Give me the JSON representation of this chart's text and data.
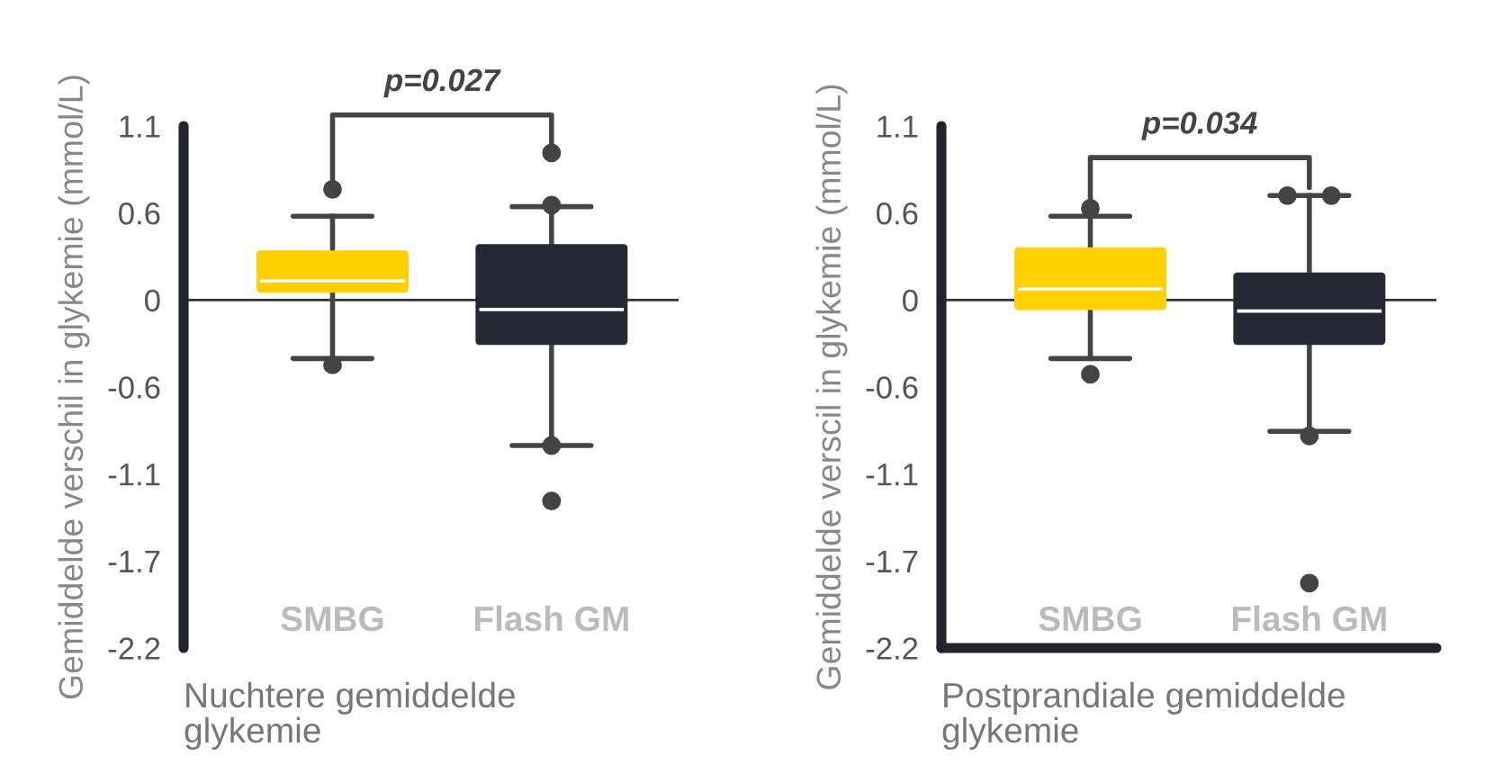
{
  "chart_data": [
    {
      "type": "box",
      "categories": [
        "SMBG",
        "Flash GM"
      ],
      "colors": [
        "#ffd100",
        "#252933"
      ],
      "boxes": [
        {
          "low": -0.37,
          "q1": 0.07,
          "median": 0.12,
          "q3": 0.29,
          "high": 0.53,
          "outliers": [
            0.7,
            -0.41
          ]
        },
        {
          "low": -0.92,
          "q1": -0.26,
          "median": -0.06,
          "q3": 0.33,
          "high": 0.59,
          "outliers": [
            0.93,
            0.6,
            -0.92,
            -1.27
          ]
        }
      ],
      "ylim": [
        -2.2,
        1.1
      ],
      "yticks": [
        -2.2,
        {
          "value": -1.65,
          "label": "-1.7"
        },
        -1.1,
        {
          "value": -0.55,
          "label": "-0.6"
        },
        0,
        {
          "value": 0.55,
          "label": "0.6"
        },
        1.1
      ],
      "ylabel": "Gemiddelde verschil in glykemie (mmol/L)",
      "xlabel": "Nuchtere gemiddelde\nglykemie",
      "ref_lines": [
        {
          "axis": "y",
          "value": 0,
          "color": "#333333"
        }
      ],
      "annotations": [
        "p=0.027"
      ]
    },
    {
      "type": "box",
      "categories": [
        "SMBG",
        "Flash GM"
      ],
      "colors": [
        "#ffd100",
        "#252933"
      ],
      "boxes": [
        {
          "low": -0.37,
          "q1": -0.04,
          "median": 0.07,
          "q3": 0.31,
          "high": 0.53,
          "outliers": [
            0.58,
            -0.47
          ]
        },
        {
          "low": -0.83,
          "q1": -0.26,
          "median": -0.07,
          "q3": 0.15,
          "high": 0.66,
          "outliers": [
            0.66,
            0.66,
            -0.86,
            -1.79
          ]
        }
      ],
      "ylim": [
        -2.2,
        1.1
      ],
      "yticks": [
        -2.2,
        {
          "value": -1.65,
          "label": "-1.7"
        },
        -1.1,
        {
          "value": -0.55,
          "label": "-0.6"
        },
        0,
        {
          "value": 0.55,
          "label": "0.6"
        },
        1.1
      ],
      "ylabel": "Gemiddelde verscil in glykemie (mmol/L)",
      "xlabel": "Postprandiale gemiddelde\nglykemie",
      "ref_lines": [
        {
          "axis": "y",
          "value": 0,
          "color": "#333333"
        }
      ],
      "annotations": [
        "p=0.034"
      ]
    }
  ]
}
